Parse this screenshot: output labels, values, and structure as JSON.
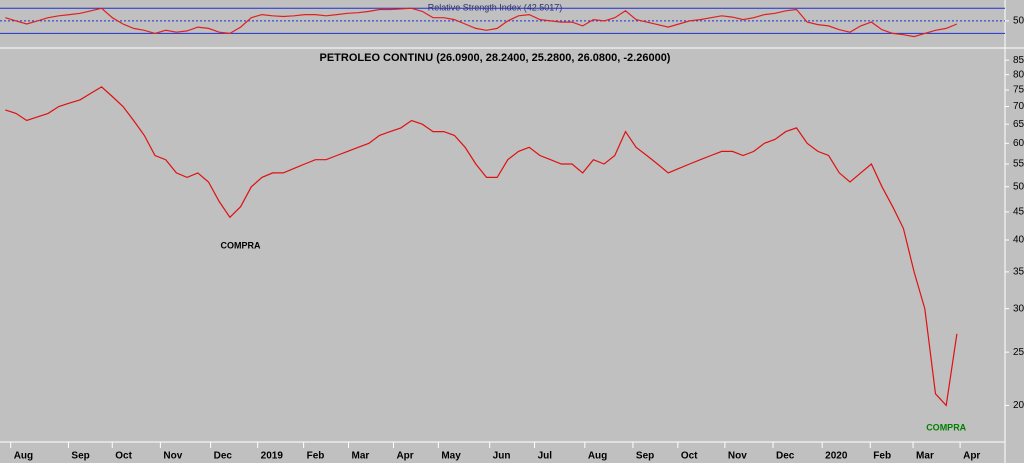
{
  "chart_data": [
    {
      "type": "line",
      "title": "Relative Strength Index (42.5017)",
      "x": [
        0,
        1,
        2,
        3,
        4,
        5,
        6,
        7,
        8,
        9,
        10,
        11,
        12,
        13,
        14,
        15,
        16,
        17,
        18,
        19,
        20,
        21,
        22,
        23,
        24,
        25,
        26,
        27,
        28,
        29,
        30,
        31,
        32,
        33,
        34,
        35,
        36,
        37,
        38,
        39,
        40,
        41,
        42,
        43,
        44,
        45,
        46,
        47,
        48,
        49,
        50,
        51,
        52,
        53,
        54,
        55,
        56,
        57,
        58,
        59,
        60,
        61,
        62,
        63,
        64,
        65,
        66,
        67,
        68,
        69,
        70,
        71,
        72,
        73,
        74,
        75,
        76,
        77,
        78,
        79,
        80,
        81,
        82,
        83,
        84,
        85,
        86,
        87,
        88,
        89
      ],
      "series": [
        {
          "name": "RSI",
          "color": "#e02020",
          "values": [
            55,
            50,
            45,
            50,
            55,
            58,
            60,
            62,
            66,
            70,
            55,
            45,
            38,
            35,
            30,
            35,
            32,
            34,
            40,
            38,
            32,
            30,
            40,
            55,
            60,
            58,
            57,
            58,
            60,
            60,
            58,
            60,
            62,
            63,
            65,
            68,
            68,
            69,
            70,
            65,
            55,
            55,
            52,
            45,
            38,
            35,
            38,
            50,
            58,
            60,
            52,
            50,
            48,
            48,
            42,
            52,
            50,
            55,
            66,
            52,
            48,
            44,
            40,
            45,
            50,
            52,
            55,
            58,
            56,
            52,
            55,
            60,
            62,
            66,
            68,
            48,
            44,
            42,
            36,
            32,
            42,
            48,
            36,
            30,
            28,
            25,
            30,
            35,
            38,
            45
          ]
        }
      ],
      "xlim": [
        -0.5,
        93.5
      ],
      "ylim": [
        10,
        80
      ],
      "yticks": [
        50
      ],
      "levels": [
        30,
        70
      ],
      "level_color": "#2030d0"
    },
    {
      "type": "line",
      "title": "PETROLEO CONTINU (26.0900, 28.2400, 25.2800, 26.0800, -2.26000)",
      "x": [
        0,
        1,
        2,
        3,
        4,
        5,
        6,
        7,
        8,
        9,
        10,
        11,
        12,
        13,
        14,
        15,
        16,
        17,
        18,
        19,
        20,
        21,
        22,
        23,
        24,
        25,
        26,
        27,
        28,
        29,
        30,
        31,
        32,
        33,
        34,
        35,
        36,
        37,
        38,
        39,
        40,
        41,
        42,
        43,
        44,
        45,
        46,
        47,
        48,
        49,
        50,
        51,
        52,
        53,
        54,
        55,
        56,
        57,
        58,
        59,
        60,
        61,
        62,
        63,
        64,
        65,
        66,
        67,
        68,
        69,
        70,
        71,
        72,
        73,
        74,
        75,
        76,
        77,
        78,
        79,
        80,
        81,
        82,
        83,
        84,
        85,
        86,
        87,
        88,
        89
      ],
      "series": [
        {
          "name": "PETROLEO CONTINU",
          "color": "#e01010",
          "values": [
            69,
            68,
            66,
            67,
            68,
            70,
            71,
            72,
            74,
            76,
            73,
            70,
            66,
            62,
            57,
            56,
            53,
            52,
            53,
            51,
            47,
            44,
            46,
            50,
            52,
            53,
            53,
            54,
            55,
            56,
            56,
            57,
            58,
            59,
            60,
            62,
            63,
            64,
            66,
            65,
            63,
            63,
            62,
            59,
            55,
            52,
            52,
            56,
            58,
            59,
            57,
            56,
            55,
            55,
            53,
            56,
            55,
            57,
            63,
            59,
            57,
            55,
            53,
            54,
            55,
            56,
            57,
            58,
            58,
            57,
            58,
            60,
            61,
            63,
            64,
            60,
            58,
            57,
            53,
            51,
            53,
            55,
            50,
            46,
            42,
            35,
            30,
            21,
            20,
            27
          ]
        }
      ],
      "log_scale": true,
      "xlim": [
        -0.5,
        93.5
      ],
      "ylim": [
        17.3,
        88.7
      ],
      "yticks": [
        85,
        80,
        75,
        70,
        65,
        60,
        55,
        50,
        45,
        40,
        35,
        30,
        25,
        20
      ],
      "xticks": [
        {
          "value": 0.5,
          "label": "Aug"
        },
        {
          "value": 5.9,
          "label": "Sep"
        },
        {
          "value": 10,
          "label": "Oct"
        },
        {
          "value": 14.5,
          "label": "Nov"
        },
        {
          "value": 19.2,
          "label": "Dec"
        },
        {
          "value": 23.6,
          "label": "2019"
        },
        {
          "value": 27.9,
          "label": "Feb"
        },
        {
          "value": 32.1,
          "label": "Mar"
        },
        {
          "value": 36.3,
          "label": "Apr"
        },
        {
          "value": 40.5,
          "label": "May"
        },
        {
          "value": 45.3,
          "label": "Jun"
        },
        {
          "value": 49.5,
          "label": "Jul"
        },
        {
          "value": 54.2,
          "label": "Aug"
        },
        {
          "value": 58.7,
          "label": "Sep"
        },
        {
          "value": 62.9,
          "label": "Oct"
        },
        {
          "value": 67.3,
          "label": "Nov"
        },
        {
          "value": 71.8,
          "label": "Dec"
        },
        {
          "value": 76.4,
          "label": "2020"
        },
        {
          "value": 80.9,
          "label": "Feb"
        },
        {
          "value": 84.9,
          "label": "Mar"
        },
        {
          "value": 89.3,
          "label": "Apr"
        }
      ],
      "annotations": [
        {
          "text": "COMPRA",
          "color": "#000000"
        },
        {
          "text": "COMPRA",
          "color": "#008000"
        }
      ]
    }
  ]
}
